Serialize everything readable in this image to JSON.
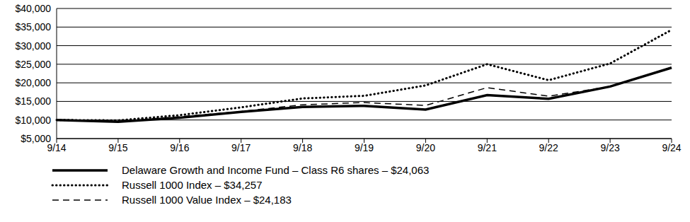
{
  "chart_data": {
    "type": "line",
    "categories": [
      "9/14",
      "9/15",
      "9/16",
      "9/17",
      "9/18",
      "9/19",
      "9/20",
      "9/21",
      "9/22",
      "9/23",
      "9/24"
    ],
    "series": [
      {
        "name": "Delaware Growth and Income Fund – Class R6 shares – $24,063",
        "color": "#000000",
        "line_style": "solid",
        "values": [
          10000,
          9500,
          10600,
          12200,
          13500,
          13800,
          12800,
          16700,
          15700,
          19000,
          24063
        ]
      },
      {
        "name": "Russell 1000 Index – $34,257",
        "color": "#000000",
        "line_style": "dotted",
        "values": [
          10000,
          9900,
          11300,
          13400,
          15800,
          16500,
          19300,
          25000,
          20700,
          25200,
          34257
        ]
      },
      {
        "name": "Russell 1000 Value Index – $24,183",
        "color": "#000000",
        "line_style": "dashed",
        "values": [
          10000,
          9600,
          10900,
          12300,
          14100,
          14700,
          13900,
          18700,
          16400,
          19000,
          24183
        ]
      }
    ],
    "ylim": [
      5000,
      40000
    ],
    "yticks": [
      {
        "value": 5000,
        "label": "$5,000"
      },
      {
        "value": 10000,
        "label": "$10,000"
      },
      {
        "value": 15000,
        "label": "$15,000"
      },
      {
        "value": 20000,
        "label": "$20,000"
      },
      {
        "value": 25000,
        "label": "$25,000"
      },
      {
        "value": 30000,
        "label": "$30,000"
      },
      {
        "value": 35000,
        "label": "$35,000"
      },
      {
        "value": 40000,
        "label": "$40,000"
      }
    ],
    "grid": true,
    "legend": "bottom"
  }
}
